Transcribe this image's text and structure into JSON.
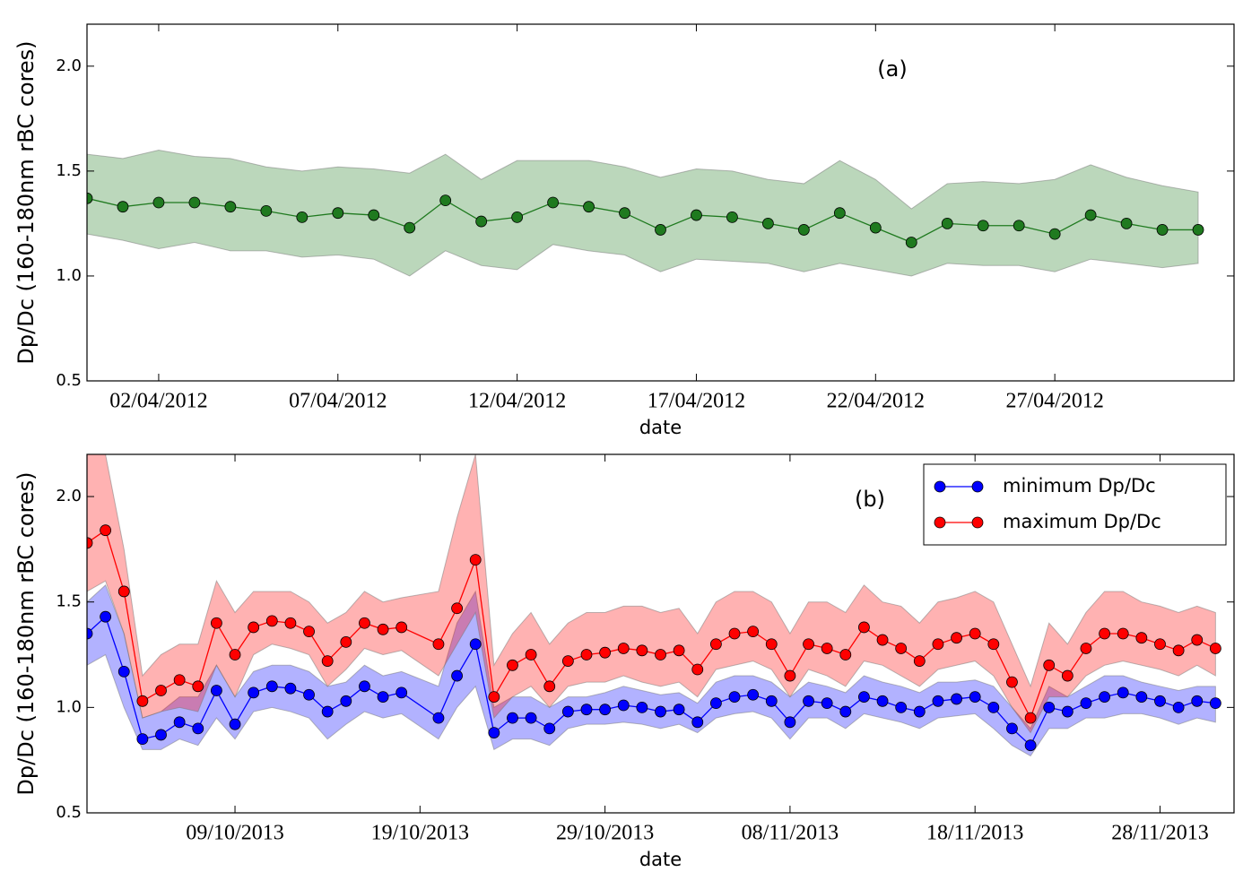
{
  "chart_data": [
    {
      "type": "line",
      "annotation": "(a)",
      "x_label": "date",
      "y_label": "Dp/Dc (160-180nm rBC cores)",
      "xlim": [
        "2012-03-31",
        "2012-05-02"
      ],
      "ylim": [
        0.5,
        2.2
      ],
      "yticks": [
        0.5,
        {
          "value": 1,
          "label": "1.0"
        },
        1.5,
        {
          "value": 2,
          "label": "2.0"
        }
      ],
      "xticks": [
        {
          "value": "2012-04-02",
          "label": "02/04/2012"
        },
        {
          "value": "2012-04-07",
          "label": "07/04/2012"
        },
        {
          "value": "2012-04-12",
          "label": "12/04/2012"
        },
        {
          "value": "2012-04-17",
          "label": "17/04/2012"
        },
        {
          "value": "2012-04-22",
          "label": "22/04/2012"
        },
        {
          "value": "2012-04-27",
          "label": "27/04/2012"
        }
      ],
      "x": [
        "2012-03-31",
        "2012-04-01",
        "2012-04-02",
        "2012-04-03",
        "2012-04-04",
        "2012-04-05",
        "2012-04-06",
        "2012-04-07",
        "2012-04-08",
        "2012-04-09",
        "2012-04-10",
        "2012-04-11",
        "2012-04-12",
        "2012-04-13",
        "2012-04-14",
        "2012-04-15",
        "2012-04-16",
        "2012-04-17",
        "2012-04-18",
        "2012-04-19",
        "2012-04-20",
        "2012-04-21",
        "2012-04-22",
        "2012-04-23",
        "2012-04-24",
        "2012-04-25",
        "2012-04-26",
        "2012-04-27",
        "2012-04-28",
        "2012-04-29",
        "2012-04-30",
        "2012-05-01"
      ],
      "series": [
        {
          "color": "#1f7a1f",
          "values": [
            1.37,
            1.33,
            1.35,
            1.35,
            1.33,
            1.31,
            1.28,
            1.3,
            1.29,
            1.23,
            1.36,
            1.26,
            1.28,
            1.35,
            1.33,
            1.3,
            1.22,
            1.29,
            1.28,
            1.25,
            1.22,
            1.3,
            1.23,
            1.16,
            1.25,
            1.24,
            1.24,
            1.2,
            1.29,
            1.25,
            1.22,
            1.22
          ],
          "lower": [
            1.2,
            1.17,
            1.13,
            1.16,
            1.12,
            1.12,
            1.09,
            1.1,
            1.08,
            1.0,
            1.12,
            1.05,
            1.03,
            1.15,
            1.12,
            1.1,
            1.02,
            1.08,
            1.07,
            1.06,
            1.02,
            1.06,
            1.03,
            1.0,
            1.06,
            1.05,
            1.05,
            1.02,
            1.08,
            1.06,
            1.04,
            1.06
          ],
          "upper": [
            1.58,
            1.56,
            1.6,
            1.57,
            1.56,
            1.52,
            1.5,
            1.52,
            1.51,
            1.49,
            1.58,
            1.46,
            1.55,
            1.55,
            1.55,
            1.52,
            1.47,
            1.51,
            1.5,
            1.46,
            1.44,
            1.55,
            1.46,
            1.32,
            1.44,
            1.45,
            1.44,
            1.46,
            1.53,
            1.47,
            1.43,
            1.4
          ]
        }
      ]
    },
    {
      "type": "line",
      "annotation": "(b)",
      "x_label": "date",
      "y_label": "Dp/Dc (160-180nm rBC cores)",
      "xlim": [
        "2013-10-01",
        "2013-12-02"
      ],
      "ylim": [
        0.5,
        2.2
      ],
      "legend": "upper right",
      "yticks": [
        0.5,
        {
          "value": 1,
          "label": "1.0"
        },
        1.5,
        {
          "value": 2,
          "label": "2.0"
        }
      ],
      "xticks": [
        {
          "value": "2013-10-09",
          "label": "09/10/2013"
        },
        {
          "value": "2013-10-19",
          "label": "19/10/2013"
        },
        {
          "value": "2013-10-29",
          "label": "29/10/2013"
        },
        {
          "value": "2013-11-08",
          "label": "08/11/2013"
        },
        {
          "value": "2013-11-18",
          "label": "18/11/2013"
        },
        {
          "value": "2013-11-28",
          "label": "28/11/2013"
        }
      ],
      "x": [
        "2013-10-01",
        "2013-10-02",
        "2013-10-03",
        "2013-10-04",
        "2013-10-05",
        "2013-10-06",
        "2013-10-07",
        "2013-10-08",
        "2013-10-09",
        "2013-10-10",
        "2013-10-11",
        "2013-10-12",
        "2013-10-13",
        "2013-10-14",
        "2013-10-15",
        "2013-10-16",
        "2013-10-17",
        "2013-10-18",
        "2013-10-20",
        "2013-10-21",
        "2013-10-22",
        "2013-10-23",
        "2013-10-24",
        "2013-10-25",
        "2013-10-26",
        "2013-10-27",
        "2013-10-28",
        "2013-10-29",
        "2013-10-30",
        "2013-10-31",
        "2013-11-01",
        "2013-11-02",
        "2013-11-03",
        "2013-11-04",
        "2013-11-05",
        "2013-11-06",
        "2013-11-07",
        "2013-11-08",
        "2013-11-09",
        "2013-11-10",
        "2013-11-11",
        "2013-11-12",
        "2013-11-13",
        "2013-11-14",
        "2013-11-15",
        "2013-11-16",
        "2013-11-17",
        "2013-11-18",
        "2013-11-19",
        "2013-11-20",
        "2013-11-21",
        "2013-11-22",
        "2013-11-23",
        "2013-11-24",
        "2013-11-25",
        "2013-11-26",
        "2013-11-27",
        "2013-11-28",
        "2013-11-29",
        "2013-11-30",
        "2013-12-01"
      ],
      "series": [
        {
          "name": "minimum Dp/Dc",
          "color": "#0000ff",
          "values": [
            1.35,
            1.43,
            1.17,
            0.85,
            0.87,
            0.93,
            0.9,
            1.08,
            0.92,
            1.07,
            1.1,
            1.09,
            1.06,
            0.98,
            1.03,
            1.1,
            1.05,
            1.07,
            0.95,
            1.15,
            1.3,
            0.88,
            0.95,
            0.95,
            0.9,
            0.98,
            0.99,
            0.99,
            1.01,
            1.0,
            0.98,
            0.99,
            0.93,
            1.02,
            1.05,
            1.06,
            1.03,
            0.93,
            1.03,
            1.02,
            0.98,
            1.05,
            1.03,
            1.0,
            0.98,
            1.03,
            1.04,
            1.05,
            1.0,
            0.9,
            0.82,
            1.0,
            0.98,
            1.02,
            1.05,
            1.07,
            1.05,
            1.03,
            1.0,
            1.03,
            1.02
          ],
          "lower": [
            1.2,
            1.25,
            1.0,
            0.8,
            0.8,
            0.85,
            0.82,
            0.95,
            0.85,
            0.98,
            1.0,
            0.98,
            0.95,
            0.85,
            0.92,
            0.98,
            0.95,
            0.97,
            0.85,
            1.0,
            1.1,
            0.8,
            0.85,
            0.85,
            0.82,
            0.9,
            0.92,
            0.92,
            0.93,
            0.92,
            0.9,
            0.92,
            0.88,
            0.95,
            0.97,
            0.98,
            0.95,
            0.85,
            0.95,
            0.95,
            0.9,
            0.97,
            0.95,
            0.93,
            0.9,
            0.95,
            0.96,
            0.97,
            0.9,
            0.82,
            0.77,
            0.9,
            0.9,
            0.95,
            0.95,
            0.97,
            0.97,
            0.95,
            0.92,
            0.95,
            0.93
          ],
          "upper": [
            1.5,
            1.58,
            1.35,
            0.95,
            0.98,
            1.05,
            1.05,
            1.2,
            1.05,
            1.17,
            1.2,
            1.2,
            1.17,
            1.1,
            1.12,
            1.2,
            1.15,
            1.17,
            1.1,
            1.4,
            1.55,
            1.0,
            1.05,
            1.05,
            1.0,
            1.05,
            1.05,
            1.07,
            1.1,
            1.08,
            1.06,
            1.07,
            1.02,
            1.12,
            1.15,
            1.15,
            1.12,
            1.05,
            1.12,
            1.1,
            1.07,
            1.15,
            1.12,
            1.1,
            1.07,
            1.12,
            1.12,
            1.13,
            1.1,
            1.0,
            0.9,
            1.1,
            1.05,
            1.1,
            1.15,
            1.15,
            1.12,
            1.1,
            1.08,
            1.1,
            1.1
          ]
        },
        {
          "name": "maximum Dp/Dc",
          "color": "#ff0000",
          "values": [
            1.78,
            1.84,
            1.55,
            1.03,
            1.08,
            1.13,
            1.1,
            1.4,
            1.25,
            1.38,
            1.41,
            1.4,
            1.36,
            1.22,
            1.31,
            1.4,
            1.37,
            1.38,
            1.3,
            1.47,
            1.7,
            1.05,
            1.2,
            1.25,
            1.1,
            1.22,
            1.25,
            1.26,
            1.28,
            1.27,
            1.25,
            1.27,
            1.18,
            1.3,
            1.35,
            1.36,
            1.3,
            1.15,
            1.3,
            1.28,
            1.25,
            1.38,
            1.32,
            1.28,
            1.22,
            1.3,
            1.33,
            1.35,
            1.3,
            1.12,
            0.95,
            1.2,
            1.15,
            1.28,
            1.35,
            1.35,
            1.33,
            1.3,
            1.27,
            1.32,
            1.28
          ],
          "lower": [
            1.55,
            1.6,
            1.35,
            0.95,
            0.98,
            1.0,
            0.98,
            1.2,
            1.05,
            1.25,
            1.3,
            1.28,
            1.25,
            1.1,
            1.18,
            1.28,
            1.25,
            1.27,
            1.15,
            1.3,
            1.45,
            0.95,
            1.05,
            1.1,
            1.0,
            1.1,
            1.12,
            1.12,
            1.15,
            1.12,
            1.1,
            1.12,
            1.05,
            1.18,
            1.2,
            1.22,
            1.18,
            1.05,
            1.18,
            1.15,
            1.1,
            1.22,
            1.2,
            1.15,
            1.1,
            1.18,
            1.2,
            1.22,
            1.15,
            1.0,
            0.88,
            1.05,
            1.05,
            1.15,
            1.2,
            1.22,
            1.2,
            1.18,
            1.15,
            1.2,
            1.15
          ],
          "upper": [
            2.2,
            2.2,
            1.75,
            1.15,
            1.25,
            1.3,
            1.3,
            1.6,
            1.45,
            1.55,
            1.55,
            1.55,
            1.5,
            1.4,
            1.45,
            1.55,
            1.5,
            1.52,
            1.55,
            1.9,
            2.2,
            1.2,
            1.35,
            1.45,
            1.3,
            1.4,
            1.45,
            1.45,
            1.48,
            1.48,
            1.45,
            1.47,
            1.35,
            1.5,
            1.55,
            1.55,
            1.5,
            1.35,
            1.5,
            1.5,
            1.45,
            1.58,
            1.5,
            1.48,
            1.4,
            1.5,
            1.52,
            1.55,
            1.5,
            1.3,
            1.1,
            1.4,
            1.3,
            1.45,
            1.55,
            1.55,
            1.5,
            1.48,
            1.45,
            1.48,
            1.45
          ]
        }
      ]
    }
  ]
}
